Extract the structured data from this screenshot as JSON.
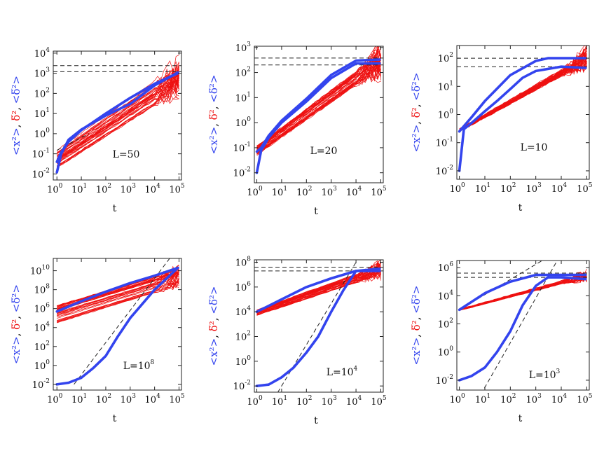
{
  "figure": {
    "colors": {
      "msd": "#3344ee",
      "tamsd": "#ee1111",
      "reference": "#222222"
    }
  },
  "y_axis_label": {
    "msd": "<x²>",
    "tamsd": "δ̅²",
    "avg_tamsd": "<δ̅²>"
  },
  "chart_data": [
    {
      "type": "line",
      "title": "",
      "annotation": "L=50",
      "annotation_base": "L=50",
      "annotation_exp": "",
      "xlabel": "t",
      "xscale": "log",
      "yscale": "log",
      "xlim_exp": [
        -0.15,
        5.1
      ],
      "ylim_exp": [
        -2.3,
        4.1
      ],
      "x_ticks": [
        "0",
        "1",
        "2",
        "3",
        "4",
        "5"
      ],
      "y_ticks": [
        "-2",
        "-1",
        "0",
        "1",
        "2",
        "3",
        "4"
      ],
      "plateaus": [
        2400,
        1200
      ],
      "reference_lines": [
        {
          "x": [
            1,
            20
          ],
          "y": [
            0.15,
            1.0
          ]
        }
      ],
      "tamsd_bundle": {
        "x": [
          1,
          100000
        ],
        "y_low": [
          0.02,
          150
        ],
        "y_high": [
          0.15,
          3000
        ],
        "count": 40
      },
      "series": [
        {
          "name": "MSD",
          "color": "#3344ee",
          "x": [
            1,
            1.5,
            3,
            10,
            100,
            1000,
            10000,
            90000
          ],
          "y": [
            0.012,
            0.1,
            0.5,
            1.6,
            8,
            30,
            250,
            1100
          ]
        },
        {
          "name": "<TAMSD>",
          "color": "#3344ee",
          "x": [
            1,
            1.5,
            3,
            10,
            100,
            1000,
            10000,
            90000
          ],
          "y": [
            0.04,
            0.12,
            0.4,
            1.5,
            10,
            60,
            300,
            1000
          ]
        }
      ]
    },
    {
      "type": "line",
      "title": "",
      "annotation": "L=20",
      "annotation_base": "L=20",
      "annotation_exp": "",
      "xlabel": "t",
      "xscale": "log",
      "yscale": "log",
      "xlim_exp": [
        -0.1,
        5.1
      ],
      "ylim_exp": [
        -2.4,
        3.05
      ],
      "x_ticks": [
        "0",
        "1",
        "2",
        "3",
        "4",
        "5"
      ],
      "y_ticks": [
        "-2",
        "-1",
        "0",
        "1",
        "2",
        "3"
      ],
      "plateaus": [
        380,
        200
      ],
      "reference_lines": [],
      "tamsd_bundle": {
        "x": [
          1,
          100000
        ],
        "y_low": [
          0.05,
          150
        ],
        "y_high": [
          0.12,
          650
        ],
        "count": 40
      },
      "series": [
        {
          "name": "MSD",
          "color": "#3344ee",
          "x": [
            1,
            1.5,
            3,
            10,
            100,
            1000,
            10000,
            90000
          ],
          "y": [
            0.01,
            0.08,
            0.25,
            1.0,
            7,
            60,
            230,
            230
          ]
        },
        {
          "name": "<TAMSD>",
          "color": "#3344ee",
          "x": [
            1,
            1.5,
            3,
            10,
            100,
            1000,
            10000,
            90000
          ],
          "y": [
            0.07,
            0.1,
            0.3,
            1.2,
            9,
            80,
            300,
            330
          ]
        }
      ]
    },
    {
      "type": "line",
      "title": "",
      "annotation": "L=10",
      "annotation_base": "L=10",
      "annotation_exp": "",
      "xlabel": "t",
      "xscale": "log",
      "yscale": "log",
      "xlim_exp": [
        -0.1,
        5.1
      ],
      "ylim_exp": [
        -2.3,
        2.45
      ],
      "x_ticks": [
        "0",
        "1",
        "2",
        "3",
        "4",
        "5"
      ],
      "y_ticks": [
        "-2",
        "-1",
        "0",
        "1",
        "2"
      ],
      "plateaus": [
        100,
        50
      ],
      "reference_lines": [],
      "tamsd_bundle": {
        "x": [
          1,
          100000
        ],
        "y_low": [
          0.25,
          70
        ],
        "y_high": [
          0.3,
          130
        ],
        "count": 40
      },
      "series": [
        {
          "name": "MSD",
          "color": "#3344ee",
          "x": [
            1,
            1.5,
            3,
            10,
            30,
            100,
            300,
            1000,
            10000,
            90000
          ],
          "y": [
            0.01,
            0.3,
            0.5,
            1.3,
            3,
            8,
            20,
            35,
            50,
            45
          ]
        },
        {
          "name": "<TAMSD>",
          "color": "#3344ee",
          "x": [
            1,
            3,
            10,
            100,
            1000,
            3000,
            10000,
            90000
          ],
          "y": [
            0.25,
            0.8,
            3,
            25,
            80,
            100,
            100,
            100
          ]
        }
      ]
    },
    {
      "type": "line",
      "title": "",
      "annotation": "L=10^8",
      "annotation_base": "L=10",
      "annotation_exp": "8",
      "xlabel": "t",
      "xscale": "log",
      "yscale": "log",
      "xlim_exp": [
        -0.15,
        5.1
      ],
      "ylim_exp": [
        -2.6,
        11.3
      ],
      "x_ticks": [
        "0",
        "1",
        "2",
        "3",
        "4",
        "5"
      ],
      "y_ticks": [
        "-2",
        "0",
        "2",
        "4",
        "6",
        "8",
        "10"
      ],
      "plateaus": [],
      "reference_lines": [
        {
          "x": [
            5,
            100000
          ],
          "y": [
            0.01,
            4000000000000
          ]
        }
      ],
      "tamsd_bundle": {
        "x": [
          1,
          100000
        ],
        "y_low": [
          30000,
          300000000
        ],
        "y_high": [
          3000000,
          20000000000
        ],
        "count": 40
      },
      "series": [
        {
          "name": "MSD",
          "color": "#3344ee",
          "x": [
            1,
            3,
            10,
            30,
            100,
            300,
            1000,
            10000,
            90000
          ],
          "y": [
            0.01,
            0.015,
            0.05,
            0.5,
            10,
            1000,
            100000,
            100000000,
            20000000000
          ]
        },
        {
          "name": "<TAMSD>",
          "color": "#3344ee",
          "x": [
            1,
            10,
            100,
            1000,
            10000,
            90000
          ],
          "y": [
            500000,
            6000000,
            60000000,
            500000000,
            3000000000,
            20000000000
          ]
        }
      ]
    },
    {
      "type": "line",
      "title": "",
      "annotation": "L=10^4",
      "annotation_base": "L=10",
      "annotation_exp": "4",
      "xlabel": "t",
      "xscale": "log",
      "yscale": "log",
      "xlim_exp": [
        -0.1,
        5.1
      ],
      "ylim_exp": [
        -2.5,
        8.2
      ],
      "x_ticks": [
        "0",
        "1",
        "2",
        "3",
        "4",
        "5"
      ],
      "y_ticks": [
        "-2",
        "0",
        "2",
        "4",
        "6",
        "8"
      ],
      "plateaus": [
        40000000,
        20000000
      ],
      "reference_lines": [
        {
          "x": [
            5,
            10000
          ],
          "y": [
            0.001,
            100000000
          ]
        }
      ],
      "tamsd_bundle": {
        "x": [
          1,
          100000
        ],
        "y_low": [
          5000,
          10000000
        ],
        "y_high": [
          15000,
          60000000
        ],
        "count": 40
      },
      "series": [
        {
          "name": "MSD",
          "color": "#3344ee",
          "x": [
            1,
            3,
            10,
            30,
            100,
            300,
            1000,
            3000,
            10000,
            90000
          ],
          "y": [
            0.01,
            0.013,
            0.05,
            0.3,
            5,
            100,
            10000,
            500000,
            20000000,
            20000000
          ]
        },
        {
          "name": "<TAMSD>",
          "color": "#3344ee",
          "x": [
            1,
            10,
            100,
            1000,
            10000,
            90000
          ],
          "y": [
            10000,
            100000,
            1000000,
            5000000,
            20000000,
            30000000
          ]
        }
      ]
    },
    {
      "type": "line",
      "title": "",
      "annotation": "L=10^3",
      "annotation_base": "L=10",
      "annotation_exp": "3",
      "xlabel": "t",
      "xscale": "log",
      "yscale": "log",
      "xlim_exp": [
        -0.1,
        5.1
      ],
      "ylim_exp": [
        -2.7,
        6.5
      ],
      "x_ticks": [
        "0",
        "1",
        "2",
        "3",
        "4",
        "5"
      ],
      "y_ticks": [
        "-2",
        "0",
        "2",
        "4",
        "6"
      ],
      "plateaus": [
        400000,
        200000
      ],
      "reference_lines": [
        {
          "x": [
            1,
            10000
          ],
          "y": [
            1000,
            20000000
          ]
        },
        {
          "x": [
            7,
            10000
          ],
          "y": [
            0.001,
            10000000
          ]
        }
      ],
      "tamsd_bundle": {
        "x": [
          1,
          100000
        ],
        "y_low": [
          900,
          200000
        ],
        "y_high": [
          1100,
          400000
        ],
        "count": 30
      },
      "series": [
        {
          "name": "MSD",
          "color": "#3344ee",
          "x": [
            1,
            3,
            10,
            30,
            100,
            300,
            1000,
            3000,
            10000,
            90000
          ],
          "y": [
            0.01,
            0.02,
            0.08,
            1,
            30,
            2000,
            50000,
            200000,
            200000,
            150000
          ]
        },
        {
          "name": "<TAMSD>",
          "color": "#3344ee",
          "x": [
            1,
            10,
            100,
            1000,
            10000,
            90000
          ],
          "y": [
            1000,
            15000,
            100000,
            300000,
            300000,
            300000
          ]
        }
      ]
    }
  ]
}
